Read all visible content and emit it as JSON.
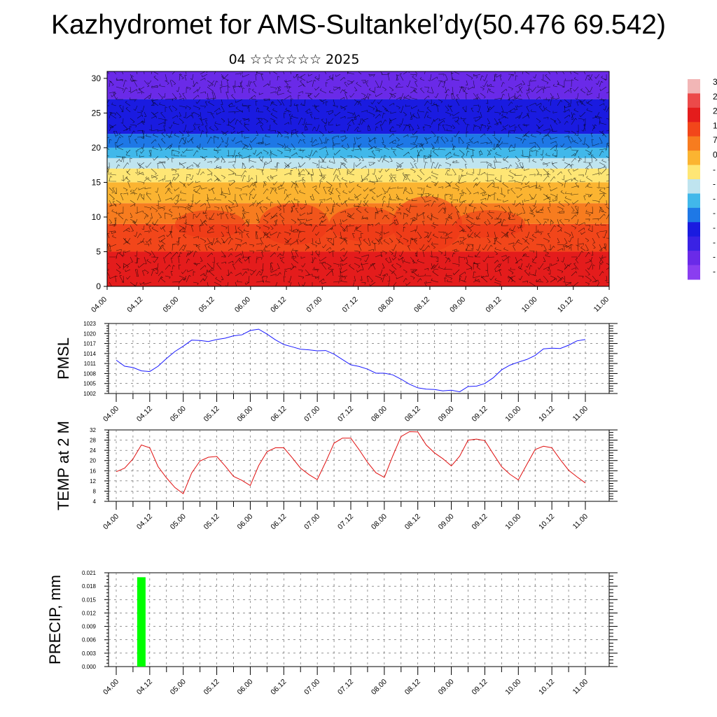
{
  "title": "Kazhydromet for AMS-Sultankel’dy(50.476 69.542)",
  "subtitle": "04 ☆☆☆☆☆☆ 2025",
  "chart_data": [
    {
      "type": "heatmap",
      "name": "temperature cross-section with wind barbs",
      "y_ticks": [
        "0",
        "5",
        "10",
        "15",
        "20",
        "25",
        "30"
      ],
      "ylim": [
        0,
        31
      ],
      "x_ticks": [
        "04.00",
        "04.12",
        "05.00",
        "05.12",
        "06.00",
        "06.12",
        "07.00",
        "07.12",
        "08.00",
        "08.12",
        "09.00",
        "09.12",
        "10.00",
        "10.12",
        "11.00"
      ],
      "bands": [
        {
          "from": 0,
          "to": 5,
          "color": "#e41c1c"
        },
        {
          "from": 5,
          "to": 9,
          "color": "#f2461a"
        },
        {
          "from": 9,
          "to": 12,
          "color": "#f77c1f"
        },
        {
          "from": 12,
          "to": 15,
          "color": "#fbb431"
        },
        {
          "from": 15,
          "to": 17,
          "color": "#fee675"
        },
        {
          "from": 17,
          "to": 18.5,
          "color": "#bfe4ef"
        },
        {
          "from": 18.5,
          "to": 20,
          "color": "#41b8ea"
        },
        {
          "from": 20,
          "to": 22,
          "color": "#1e78e6"
        },
        {
          "from": 22,
          "to": 27,
          "color": "#1a1be0"
        },
        {
          "from": 27,
          "to": 31,
          "color": "#6a2ae8"
        }
      ],
      "colorbar_labels": [
        "3",
        "2",
        "2",
        "1",
        "7",
        "0",
        "-",
        "-",
        "-",
        "-",
        "-",
        "-",
        "-",
        "-"
      ],
      "colorbar_colors": [
        "#f2b6b6",
        "#ec4a4a",
        "#e41c1c",
        "#f2461a",
        "#f77c1f",
        "#fbb431",
        "#fee675",
        "#bfe4ef",
        "#41b8ea",
        "#1e78e6",
        "#1a1be0",
        "#3a22e4",
        "#6a2ae8",
        "#8a3ef0"
      ]
    },
    {
      "type": "line",
      "ylabel": "PMSL",
      "y_ticks": [
        "1002",
        "1005",
        "1008",
        "1011",
        "1014",
        "1017",
        "1020",
        "1023"
      ],
      "ylim": [
        1002,
        1023
      ],
      "x_ticks": [
        "04.00",
        "04.12",
        "05.00",
        "05.12",
        "06.00",
        "06.12",
        "07.00",
        "07.12",
        "08.00",
        "08.12",
        "09.00",
        "09.12",
        "10.00",
        "10.12",
        "11.00"
      ],
      "line_color": "#1a1aff",
      "x": [
        0,
        3,
        6,
        9,
        12,
        15,
        18,
        21,
        24,
        27,
        30,
        33,
        36,
        39,
        42,
        45,
        48,
        51,
        54,
        57,
        60,
        63,
        66,
        69,
        72,
        75,
        78,
        81,
        84,
        87,
        90,
        93,
        96,
        99,
        102,
        105,
        108,
        111,
        114,
        117,
        120,
        123,
        126,
        129,
        132,
        135,
        138,
        141,
        144,
        147,
        150,
        153,
        156,
        159,
        162,
        165,
        168
      ],
      "values": [
        1012,
        1010.2,
        1009.8,
        1008.8,
        1008.6,
        1010.2,
        1012.5,
        1014.6,
        1016.2,
        1018,
        1017.9,
        1017.6,
        1018.2,
        1018.6,
        1019.3,
        1019.6,
        1020.9,
        1021.3,
        1019.8,
        1018.1,
        1016.7,
        1016,
        1015.3,
        1015.1,
        1014.8,
        1014.9,
        1013.8,
        1012.2,
        1010.6,
        1010.1,
        1009.3,
        1008.1,
        1008.1,
        1007.6,
        1006.3,
        1004.8,
        1003.7,
        1003.3,
        1003.2,
        1002.8,
        1003,
        1002.5,
        1004.1,
        1004.2,
        1005,
        1006.7,
        1009.1,
        1010.5,
        1011.4,
        1012.2,
        1013.4,
        1015.4,
        1015.6,
        1015.5,
        1016.5,
        1017.8,
        1018.2
      ]
    },
    {
      "type": "line",
      "ylabel": "TEMP at 2 M",
      "y_ticks": [
        "4",
        "8",
        "12",
        "16",
        "20",
        "24",
        "28",
        "32"
      ],
      "ylim": [
        4,
        32
      ],
      "x_ticks": [
        "04.00",
        "04.12",
        "05.00",
        "05.12",
        "06.00",
        "06.12",
        "07.00",
        "07.12",
        "08.00",
        "08.12",
        "09.00",
        "09.12",
        "10.00",
        "10.12",
        "11.00"
      ],
      "line_color": "#e01010",
      "x": [
        0,
        3,
        6,
        9,
        12,
        15,
        18,
        21,
        24,
        27,
        30,
        33,
        36,
        39,
        42,
        45,
        48,
        51,
        54,
        57,
        60,
        63,
        66,
        69,
        72,
        75,
        78,
        81,
        84,
        87,
        90,
        93,
        96,
        99,
        102,
        105,
        108,
        111,
        114,
        117,
        120,
        123,
        126,
        129,
        132,
        135,
        138,
        141,
        144,
        147,
        150,
        153,
        156,
        159,
        162,
        165,
        168
      ],
      "values": [
        15.6,
        17,
        20.6,
        26.1,
        25,
        17.6,
        13.2,
        9.4,
        7,
        15.1,
        19.8,
        21.3,
        21.6,
        17.9,
        13.8,
        12.2,
        10.2,
        18,
        23.5,
        25,
        25,
        21.1,
        17,
        14.5,
        12.5,
        19.4,
        26.8,
        28.8,
        28.8,
        24.2,
        19.3,
        15.2,
        13.4,
        21.7,
        29.4,
        31.3,
        31.2,
        26.1,
        23,
        20.7,
        17.9,
        21.7,
        28,
        28.4,
        27.8,
        22.6,
        17.6,
        14.6,
        12.4,
        18.4,
        24.3,
        25.6,
        25,
        20.4,
        16.2,
        13.6,
        11.2
      ]
    },
    {
      "type": "bar",
      "ylabel": "PRECIP, mm",
      "y_ticks": [
        "0.000",
        "0.003",
        "0.006",
        "0.009",
        "0.012",
        "0.015",
        "0.018",
        "0.021"
      ],
      "ylim": [
        0,
        0.021
      ],
      "x_ticks": [
        "04.00",
        "04.12",
        "05.00",
        "05.12",
        "06.00",
        "06.12",
        "07.00",
        "07.12",
        "08.00",
        "08.12",
        "09.00",
        "09.12",
        "10.00",
        "10.12",
        "11.00"
      ],
      "bar_color": "#00ff00",
      "bars": [
        {
          "x": 9,
          "value": 0.02
        }
      ]
    }
  ]
}
